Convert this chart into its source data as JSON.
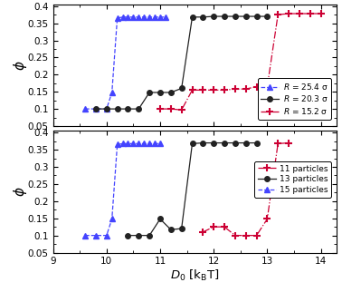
{
  "top_panel": {
    "series": [
      {
        "label": "$R$ = 25.4 σ",
        "color": "#4444ff",
        "linestyle": "--",
        "marker": "^",
        "markersize": 4,
        "markerfacecolor": "#4444ff",
        "x": [
          9.6,
          9.8,
          10.0,
          10.1,
          10.2,
          10.3,
          10.4,
          10.5,
          10.6,
          10.7,
          10.8,
          10.9,
          11.0,
          11.1
        ],
        "y": [
          0.1,
          0.1,
          0.1,
          0.148,
          0.365,
          0.368,
          0.368,
          0.368,
          0.368,
          0.368,
          0.368,
          0.368,
          0.368,
          0.368
        ]
      },
      {
        "label": "$R$ = 20.3 σ",
        "color": "#222222",
        "linestyle": "-",
        "marker": "o",
        "markersize": 4,
        "markerfacecolor": "#222222",
        "x": [
          9.8,
          10.0,
          10.2,
          10.4,
          10.6,
          10.8,
          11.0,
          11.2,
          11.4,
          11.6,
          11.8,
          12.0,
          12.2,
          12.4,
          12.6,
          12.8,
          13.0
        ],
        "y": [
          0.1,
          0.1,
          0.1,
          0.1,
          0.1,
          0.148,
          0.148,
          0.148,
          0.16,
          0.368,
          0.368,
          0.37,
          0.37,
          0.37,
          0.37,
          0.37,
          0.37
        ]
      },
      {
        "label": "$R$ = 15.2 σ",
        "color": "#cc0033",
        "linestyle": "-.",
        "marker": "+",
        "markersize": 6,
        "markerfacecolor": "#cc0033",
        "x": [
          11.0,
          11.2,
          11.4,
          11.6,
          11.8,
          12.0,
          12.2,
          12.4,
          12.6,
          12.8,
          13.0,
          13.2,
          13.4,
          13.6,
          13.8,
          14.0
        ],
        "y": [
          0.1,
          0.1,
          0.097,
          0.155,
          0.155,
          0.155,
          0.155,
          0.158,
          0.158,
          0.165,
          0.165,
          0.375,
          0.378,
          0.378,
          0.378,
          0.378
        ]
      }
    ],
    "ylabel": "ϕ",
    "ylim": [
      0.05,
      0.405
    ],
    "yticks": [
      0.05,
      0.1,
      0.15,
      0.2,
      0.25,
      0.3,
      0.35,
      0.4
    ],
    "yticklabels": [
      "0.05",
      "0.1",
      "0.15",
      "0.2",
      "0.25",
      "0.3",
      "0.35",
      "0.4"
    ]
  },
  "bottom_panel": {
    "series": [
      {
        "label": "11 particles",
        "color": "#cc0033",
        "linestyle": "-.",
        "marker": "+",
        "markersize": 6,
        "markerfacecolor": "#cc0033",
        "x": [
          11.8,
          12.0,
          12.2,
          12.4,
          12.6,
          12.8,
          13.0,
          13.2,
          13.4
        ],
        "y": [
          0.11,
          0.125,
          0.125,
          0.1,
          0.1,
          0.1,
          0.148,
          0.368,
          0.37
        ]
      },
      {
        "label": "13 particles",
        "color": "#222222",
        "linestyle": "-",
        "marker": "o",
        "markersize": 4,
        "markerfacecolor": "#222222",
        "x": [
          10.4,
          10.6,
          10.8,
          11.0,
          11.2,
          11.4,
          11.6,
          11.8,
          12.0,
          12.2,
          12.4,
          12.6,
          12.8
        ],
        "y": [
          0.1,
          0.1,
          0.1,
          0.148,
          0.117,
          0.12,
          0.368,
          0.37,
          0.37,
          0.37,
          0.37,
          0.37,
          0.37
        ]
      },
      {
        "label": "15 particles",
        "color": "#4444ff",
        "linestyle": "--",
        "marker": "^",
        "markersize": 4,
        "markerfacecolor": "#4444ff",
        "x": [
          9.6,
          9.8,
          10.0,
          10.1,
          10.2,
          10.3,
          10.4,
          10.5,
          10.6,
          10.7,
          10.8,
          10.9,
          11.0
        ],
        "y": [
          0.1,
          0.1,
          0.1,
          0.148,
          0.365,
          0.368,
          0.368,
          0.368,
          0.368,
          0.368,
          0.368,
          0.368,
          0.368
        ]
      }
    ],
    "ylabel": "ϕ",
    "xlabel": "$D_0$ [k$_{\\mathrm{B}}$T]",
    "ylim": [
      0.05,
      0.405
    ],
    "yticks": [
      0.05,
      0.1,
      0.15,
      0.2,
      0.25,
      0.3,
      0.35,
      0.4
    ],
    "yticklabels": [
      "0.05",
      "0.1",
      "0.15",
      "0.2",
      "0.25",
      "0.3",
      "0.35",
      "0.4"
    ]
  },
  "xlim": [
    9,
    14.3
  ],
  "xticks": [
    9,
    10,
    11,
    12,
    13,
    14
  ],
  "background_color": "#ffffff"
}
